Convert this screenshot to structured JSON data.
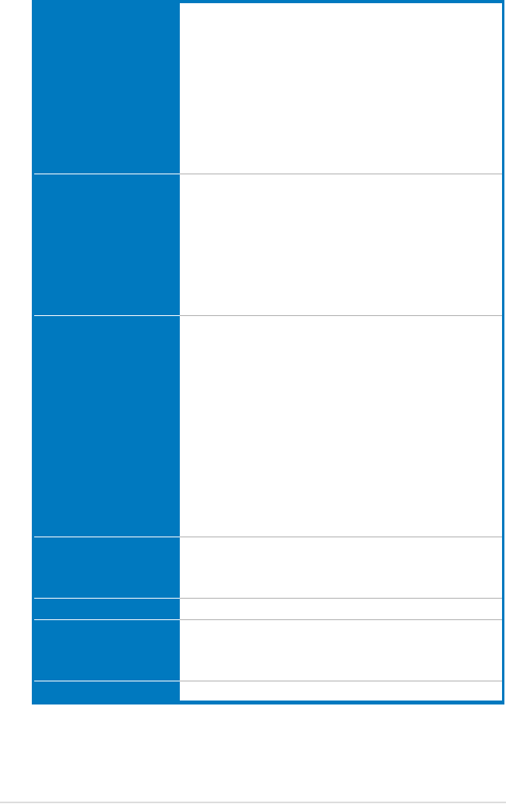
{
  "colors": {
    "frame": "#0079bf",
    "label_column": "#0079bf",
    "value_column": "#ffffff",
    "row_divider": "#b0b0b0",
    "footer_rule": "#dddddd"
  }
}
